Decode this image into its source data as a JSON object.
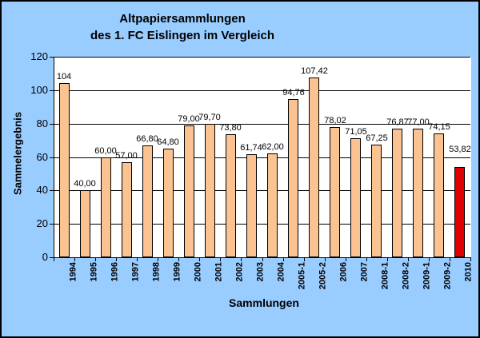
{
  "chart_data": {
    "type": "bar",
    "title_line1": "Altpapiersammlungen",
    "title_line2": "des 1. FC Eislingen im Vergleich",
    "xlabel": "Sammlungen",
    "ylabel": "Sammelergebnis",
    "categories": [
      "1994",
      "1995",
      "1996",
      "1997",
      "1998",
      "1999",
      "2000",
      "2001",
      "2002",
      "2003",
      "2004",
      "2005-1",
      "2005-2",
      "2006",
      "2007",
      "2008-1",
      "2008-2",
      "2009-1",
      "2009-2",
      "2010"
    ],
    "values": [
      104,
      40.0,
      60.0,
      57.0,
      66.8,
      64.8,
      79.0,
      79.7,
      73.8,
      61.74,
      62.0,
      94.76,
      107.42,
      78.02,
      71.05,
      67.25,
      76.87,
      77.0,
      74.15,
      53.82
    ],
    "value_labels": [
      "104",
      "40,00",
      "60,00",
      "57,00",
      "66,80",
      "64,80",
      "79,00",
      "79,70",
      "73,80",
      "61,74",
      "62,00",
      "94,76",
      "107,42",
      "78,02",
      "71,05",
      "67,25",
      "76,87",
      "77,00",
      "74,15",
      "53,82"
    ],
    "ylim": [
      0,
      120
    ],
    "yticks": [
      0,
      20,
      40,
      60,
      80,
      100,
      120
    ],
    "grid": true,
    "legend": "none",
    "colors": {
      "background": "#99CCFF",
      "plot_background": "#FFFFFF",
      "bar_fill": "#FAC391",
      "bar_border": "#000000",
      "highlight_fill": "#E10000",
      "gridline": "#000000",
      "text": "#000000"
    },
    "highlight_index": 19
  }
}
